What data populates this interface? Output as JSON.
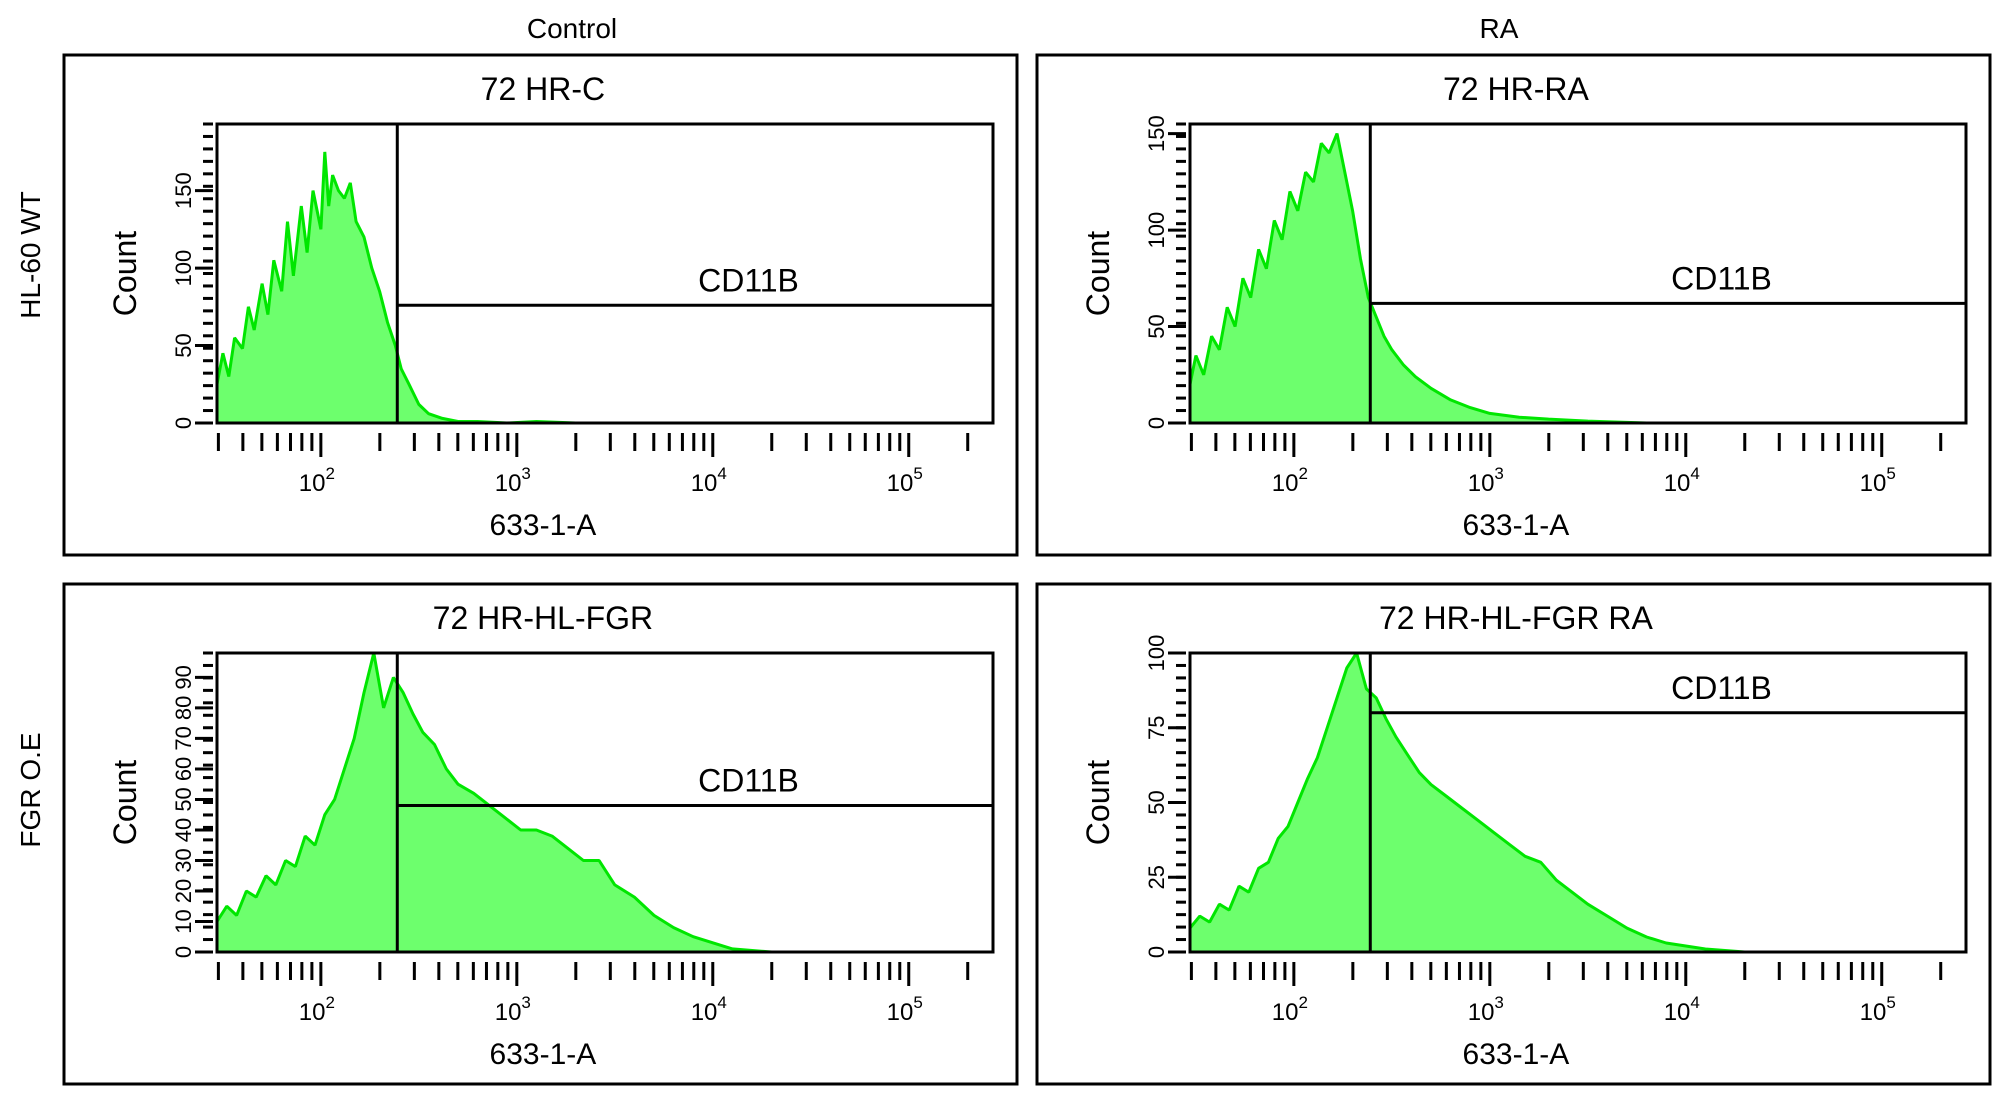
{
  "column_titles": [
    "Control",
    "RA"
  ],
  "row_titles": [
    "HL-60 WT",
    "FGR O.E"
  ],
  "colors": {
    "fill": "#6dff6d",
    "stroke": "#00e600",
    "frame": "#000000"
  },
  "chart_data": [
    {
      "type": "area",
      "title": "72 HR-C",
      "xlabel": "633-1-A",
      "ylabel": "Count",
      "xscale": "log",
      "xlim_log10": [
        1.47,
        5.43
      ],
      "xticks": [
        {
          "log10": 2,
          "base": "10",
          "exp": "2"
        },
        {
          "log10": 3,
          "base": "10",
          "exp": "3"
        },
        {
          "log10": 4,
          "base": "10",
          "exp": "4"
        },
        {
          "log10": 5,
          "base": "10",
          "exp": "5"
        }
      ],
      "ylim": [
        0,
        193
      ],
      "yticks": [
        0,
        50,
        100,
        150
      ],
      "gate": {
        "label": "CD11B",
        "x_start_log10": 2.39,
        "level": 76
      },
      "x_log10": [
        1.47,
        1.5,
        1.53,
        1.56,
        1.6,
        1.63,
        1.66,
        1.7,
        1.73,
        1.76,
        1.8,
        1.83,
        1.86,
        1.9,
        1.93,
        1.96,
        2.0,
        2.02,
        2.04,
        2.06,
        2.09,
        2.12,
        2.15,
        2.18,
        2.22,
        2.26,
        2.3,
        2.34,
        2.38,
        2.41,
        2.45,
        2.5,
        2.55,
        2.62,
        2.7,
        2.8,
        2.95,
        3.1,
        3.3,
        3.6,
        4.0,
        5.43
      ],
      "counts": [
        25,
        45,
        30,
        55,
        48,
        75,
        60,
        90,
        70,
        105,
        85,
        130,
        95,
        140,
        110,
        150,
        125,
        175,
        140,
        160,
        150,
        145,
        155,
        130,
        120,
        100,
        85,
        65,
        50,
        35,
        25,
        12,
        6,
        3,
        1,
        1,
        0,
        1,
        0,
        0,
        0,
        0
      ]
    },
    {
      "type": "area",
      "title": "72 HR-RA",
      "xlabel": "633-1-A",
      "ylabel": "Count",
      "xscale": "log",
      "xlim_log10": [
        1.47,
        5.43
      ],
      "xticks": [
        {
          "log10": 2,
          "base": "10",
          "exp": "2"
        },
        {
          "log10": 3,
          "base": "10",
          "exp": "3"
        },
        {
          "log10": 4,
          "base": "10",
          "exp": "4"
        },
        {
          "log10": 5,
          "base": "10",
          "exp": "5"
        }
      ],
      "ylim": [
        0,
        155
      ],
      "yticks": [
        0,
        50,
        100,
        150
      ],
      "gate": {
        "label": "CD11B",
        "x_start_log10": 2.39,
        "level": 62
      },
      "x_log10": [
        1.47,
        1.5,
        1.54,
        1.58,
        1.62,
        1.66,
        1.7,
        1.74,
        1.78,
        1.82,
        1.86,
        1.9,
        1.94,
        1.98,
        2.02,
        2.06,
        2.1,
        2.14,
        2.18,
        2.22,
        2.26,
        2.3,
        2.34,
        2.38,
        2.42,
        2.46,
        2.5,
        2.56,
        2.62,
        2.7,
        2.8,
        2.9,
        3.0,
        3.15,
        3.3,
        3.5,
        3.8,
        5.43
      ],
      "counts": [
        20,
        35,
        25,
        45,
        38,
        60,
        50,
        75,
        65,
        90,
        80,
        105,
        95,
        120,
        110,
        130,
        125,
        145,
        140,
        150,
        130,
        110,
        85,
        65,
        55,
        45,
        38,
        30,
        24,
        18,
        12,
        8,
        5,
        3,
        2,
        1,
        0,
        0
      ]
    },
    {
      "type": "area",
      "title": "72 HR-HL-FGR",
      "xlabel": "633-1-A",
      "ylabel": "Count",
      "xscale": "log",
      "xlim_log10": [
        1.47,
        5.43
      ],
      "xticks": [
        {
          "log10": 2,
          "base": "10",
          "exp": "2"
        },
        {
          "log10": 3,
          "base": "10",
          "exp": "3"
        },
        {
          "log10": 4,
          "base": "10",
          "exp": "4"
        },
        {
          "log10": 5,
          "base": "10",
          "exp": "5"
        }
      ],
      "ylim": [
        0,
        98
      ],
      "yticks": [
        0,
        10,
        20,
        30,
        40,
        50,
        60,
        70,
        80,
        90
      ],
      "gate": {
        "label": "CD11B",
        "x_start_log10": 2.39,
        "level": 48
      },
      "x_log10": [
        1.47,
        1.52,
        1.57,
        1.62,
        1.67,
        1.72,
        1.77,
        1.82,
        1.87,
        1.92,
        1.97,
        2.02,
        2.07,
        2.12,
        2.17,
        2.22,
        2.27,
        2.32,
        2.37,
        2.42,
        2.47,
        2.52,
        2.58,
        2.64,
        2.7,
        2.78,
        2.86,
        2.94,
        3.02,
        3.1,
        3.18,
        3.26,
        3.34,
        3.42,
        3.5,
        3.6,
        3.7,
        3.8,
        3.9,
        4.0,
        4.1,
        4.3,
        5.43
      ],
      "counts": [
        10,
        15,
        12,
        20,
        18,
        25,
        22,
        30,
        28,
        38,
        35,
        45,
        50,
        60,
        70,
        85,
        98,
        80,
        90,
        85,
        78,
        72,
        68,
        60,
        55,
        52,
        48,
        44,
        40,
        40,
        38,
        34,
        30,
        30,
        22,
        18,
        12,
        8,
        5,
        3,
        1,
        0,
        0
      ]
    },
    {
      "type": "area",
      "title": "72 HR-HL-FGR RA",
      "xlabel": "633-1-A",
      "ylabel": "Count",
      "xscale": "log",
      "xlim_log10": [
        1.47,
        5.43
      ],
      "xticks": [
        {
          "log10": 2,
          "base": "10",
          "exp": "2"
        },
        {
          "log10": 3,
          "base": "10",
          "exp": "3"
        },
        {
          "log10": 4,
          "base": "10",
          "exp": "4"
        },
        {
          "log10": 5,
          "base": "10",
          "exp": "5"
        }
      ],
      "ylim": [
        0,
        100
      ],
      "yticks": [
        0,
        25,
        50,
        75,
        100
      ],
      "gate": {
        "label": "CD11B",
        "x_start_log10": 2.39,
        "level": 80
      },
      "x_log10": [
        1.47,
        1.52,
        1.57,
        1.62,
        1.67,
        1.72,
        1.77,
        1.82,
        1.87,
        1.92,
        1.97,
        2.02,
        2.07,
        2.12,
        2.17,
        2.22,
        2.27,
        2.32,
        2.37,
        2.42,
        2.47,
        2.52,
        2.58,
        2.64,
        2.7,
        2.78,
        2.86,
        2.94,
        3.02,
        3.1,
        3.18,
        3.26,
        3.34,
        3.42,
        3.5,
        3.6,
        3.7,
        3.8,
        3.9,
        4.0,
        4.1,
        4.3,
        5.43
      ],
      "counts": [
        8,
        12,
        10,
        16,
        14,
        22,
        20,
        28,
        30,
        38,
        42,
        50,
        58,
        65,
        75,
        85,
        95,
        100,
        88,
        85,
        78,
        72,
        66,
        60,
        56,
        52,
        48,
        44,
        40,
        36,
        32,
        30,
        24,
        20,
        16,
        12,
        8,
        5,
        3,
        2,
        1,
        0,
        0
      ]
    }
  ]
}
